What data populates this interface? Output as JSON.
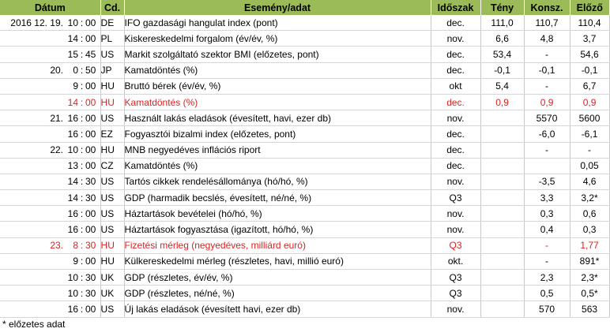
{
  "header": {
    "date": "Dátum",
    "cd": "Cd.",
    "event": "Esemény/adat",
    "period": "Időszak",
    "actual": "Tény",
    "consensus": "Konsz.",
    "previous": "Előző"
  },
  "rows": [
    {
      "date": "2016 12. 19.",
      "hh": "10",
      "mm": "00",
      "cd": "DE",
      "event": "IFO gazdasági hangulat index (pont)",
      "period": "dec.",
      "actual": "111,0",
      "consensus": "110,7",
      "previous": "110,4",
      "red": false
    },
    {
      "date": "",
      "hh": "14",
      "mm": "00",
      "cd": "PL",
      "event": "Kiskereskedelmi forgalom (év/év, %)",
      "period": "nov.",
      "actual": "6,6",
      "consensus": "4,8",
      "previous": "3,7",
      "red": false
    },
    {
      "date": "",
      "hh": "15",
      "mm": "45",
      "cd": "US",
      "event": "Markit szolgáltató szektor BMI (előzetes, pont)",
      "period": "dec.",
      "actual": "53,4",
      "consensus": "-",
      "previous": "54,6",
      "red": false
    },
    {
      "date": "20.",
      "hh": "0",
      "mm": "50",
      "cd": "JP",
      "event": "Kamatdöntés (%)",
      "period": "dec.",
      "actual": "-0,1",
      "consensus": "-0,1",
      "previous": "-0,1",
      "red": false
    },
    {
      "date": "",
      "hh": "9",
      "mm": "00",
      "cd": "HU",
      "event": "Bruttó bérek (év/év, %)",
      "period": "okt",
      "actual": "5,4",
      "consensus": "-",
      "previous": "6,7",
      "red": false
    },
    {
      "date": "",
      "hh": "14",
      "mm": "00",
      "cd": "HU",
      "event": "Kamatdöntés (%)",
      "period": "dec.",
      "actual": "0,9",
      "consensus": "0,9",
      "previous": "0,9",
      "red": true
    },
    {
      "date": "21.",
      "hh": "16",
      "mm": "00",
      "cd": "US",
      "event": "Használt lakás eladások (évesített, havi, ezer db)",
      "period": "nov.",
      "actual": "",
      "consensus": "5570",
      "previous": "5600",
      "red": false
    },
    {
      "date": "",
      "hh": "16",
      "mm": "00",
      "cd": "EZ",
      "event": "Fogyasztói bizalmi index (előzetes, pont)",
      "period": "dec.",
      "actual": "",
      "consensus": "-6,0",
      "previous": "-6,1",
      "red": false
    },
    {
      "date": "22.",
      "hh": "10",
      "mm": "00",
      "cd": "HU",
      "event": "MNB negyedéves inflációs riport",
      "period": "dec.",
      "actual": "",
      "consensus": "-",
      "previous": "-",
      "red": false
    },
    {
      "date": "",
      "hh": "13",
      "mm": "00",
      "cd": "CZ",
      "event": "Kamatdöntés (%)",
      "period": "dec.",
      "actual": "",
      "consensus": "",
      "previous": "0,05",
      "red": false
    },
    {
      "date": "",
      "hh": "14",
      "mm": "30",
      "cd": "US",
      "event": "Tartós cikkek rendelésállománya (hó/hó, %)",
      "period": "nov.",
      "actual": "",
      "consensus": "-3,5",
      "previous": "4,6",
      "red": false
    },
    {
      "date": "",
      "hh": "14",
      "mm": "30",
      "cd": "US",
      "event": "GDP (harmadik becslés, évesített, né/né, %)",
      "period": "Q3",
      "actual": "",
      "consensus": "3,3",
      "previous": "3,2*",
      "red": false
    },
    {
      "date": "",
      "hh": "16",
      "mm": "00",
      "cd": "US",
      "event": "Háztartások bevételei (hó/hó, %)",
      "period": "nov.",
      "actual": "",
      "consensus": "0,3",
      "previous": "0,6",
      "red": false
    },
    {
      "date": "",
      "hh": "16",
      "mm": "00",
      "cd": "US",
      "event": "Háztartások fogyasztása (igazított, hó/hó, %)",
      "period": "nov.",
      "actual": "",
      "consensus": "0,4",
      "previous": "0,3",
      "red": false
    },
    {
      "date": "23.",
      "hh": "8",
      "mm": "30",
      "cd": "HU",
      "event": "Fizetési mérleg (negyedéves, milliárd euró)",
      "period": "Q3",
      "actual": "",
      "consensus": "-",
      "previous": "1,77",
      "red": true
    },
    {
      "date": "",
      "hh": "9",
      "mm": "00",
      "cd": "HU",
      "event": "Külkereskedelmi mérleg (részletes, havi, millió euró)",
      "period": "okt.",
      "actual": "",
      "consensus": "-",
      "previous": "891*",
      "red": false
    },
    {
      "date": "",
      "hh": "10",
      "mm": "30",
      "cd": "UK",
      "event": "GDP (részletes, év/év, %)",
      "period": "Q3",
      "actual": "",
      "consensus": "2,3",
      "previous": "2,3*",
      "red": false
    },
    {
      "date": "",
      "hh": "10",
      "mm": "30",
      "cd": "UK",
      "event": "GDP (részletes, né/né, %)",
      "period": "Q3",
      "actual": "",
      "consensus": "0,5",
      "previous": "0,5*",
      "red": false
    },
    {
      "date": "",
      "hh": "16",
      "mm": "00",
      "cd": "US",
      "event": "Új lakás eladások (évesített havi, ezer db)",
      "period": "nov.",
      "actual": "",
      "consensus": "570",
      "previous": "563",
      "red": false
    }
  ],
  "footnote": "* előzetes adat",
  "colors": {
    "header_bg": "#9bbb59",
    "highlight": "#e02020"
  }
}
